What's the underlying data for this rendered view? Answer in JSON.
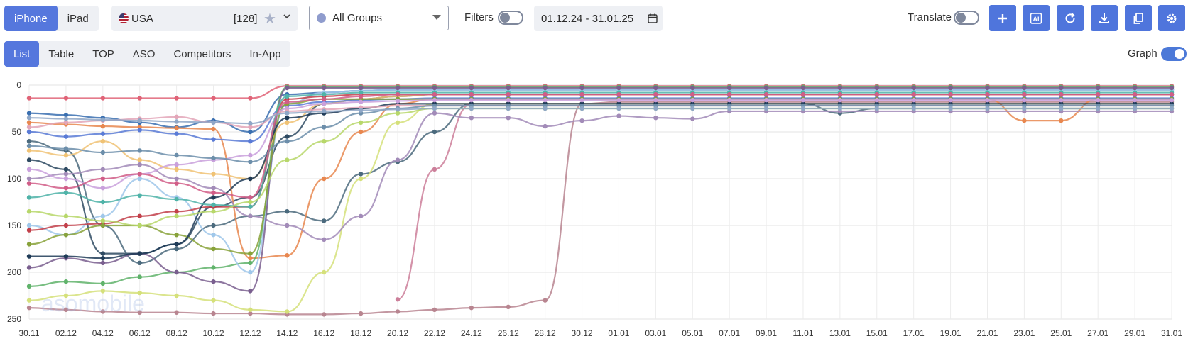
{
  "device_tabs": {
    "iphone": "iPhone",
    "ipad": "iPad"
  },
  "country": {
    "name": "USA",
    "count": "[128]"
  },
  "groups": {
    "selected": "All Groups"
  },
  "filters": {
    "label": "Filters",
    "enabled": false
  },
  "date_range": "01.12.24 - 31.01.25",
  "translate": {
    "label": "Translate",
    "enabled": false
  },
  "toolbar": {
    "ai_label": "AI"
  },
  "view_tabs": [
    "List",
    "Table",
    "TOP",
    "ASO",
    "Competitors",
    "In-App"
  ],
  "graph": {
    "label": "Graph",
    "enabled": true
  },
  "watermark": "asomobile",
  "chart_data": {
    "type": "line",
    "y_reversed": true,
    "ylim": [
      0,
      250
    ],
    "y_ticks": [
      0,
      50,
      100,
      150,
      200,
      250
    ],
    "x_ticks": [
      "30.11",
      "02.12",
      "04.12",
      "06.12",
      "08.12",
      "10.12",
      "12.12",
      "14.12",
      "16.12",
      "18.12",
      "20.12",
      "22.12",
      "24.12",
      "26.12",
      "28.12",
      "30.12",
      "01.01",
      "03.01",
      "05.01",
      "07.01",
      "09.01",
      "11.01",
      "13.01",
      "15.01",
      "17.01",
      "19.01",
      "21.01",
      "23.01",
      "25.01",
      "27.01",
      "29.01",
      "31.01"
    ],
    "grid": true,
    "series_note": "approx. 120 keyword position series; representative subset",
    "series": [
      {
        "color": "#e06377",
        "values": [
          14,
          14,
          14,
          14,
          14,
          14,
          14,
          1,
          1,
          1,
          1,
          1,
          1,
          1,
          1,
          1,
          1,
          1,
          1,
          1,
          1,
          1,
          1,
          1,
          1,
          1,
          1,
          1,
          1,
          1,
          1,
          1
        ]
      },
      {
        "color": "#3a6fb0",
        "values": [
          30,
          32,
          35,
          40,
          45,
          38,
          50,
          10,
          8,
          6,
          5,
          5,
          5,
          5,
          5,
          5,
          5,
          5,
          5,
          5,
          5,
          5,
          5,
          5,
          5,
          5,
          5,
          5,
          5,
          5,
          5,
          5
        ]
      },
      {
        "color": "#2e4a62",
        "values": [
          80,
          90,
          180,
          180,
          170,
          130,
          120,
          55,
          20,
          15,
          12,
          10,
          10,
          10,
          10,
          10,
          10,
          10,
          10,
          10,
          10,
          10,
          10,
          10,
          10,
          10,
          10,
          10,
          10,
          10,
          10,
          10
        ]
      },
      {
        "color": "#4b6a7d",
        "values": [
          60,
          70,
          150,
          190,
          175,
          150,
          140,
          135,
          145,
          95,
          82,
          50,
          20,
          20,
          20,
          20,
          20,
          20,
          20,
          20,
          20,
          20,
          30,
          25,
          25,
          25,
          25,
          25,
          25,
          25,
          25,
          25
        ]
      },
      {
        "color": "#cc7f9a",
        "values": [
          null,
          null,
          null,
          null,
          null,
          null,
          null,
          null,
          null,
          null,
          229,
          90,
          20,
          20,
          20,
          20,
          20,
          20,
          20,
          20,
          20,
          20,
          20,
          20,
          20,
          20,
          20,
          20,
          20,
          20,
          20,
          20
        ]
      },
      {
        "color": "#b88590",
        "values": [
          238,
          240,
          242,
          243,
          243,
          244,
          244,
          245,
          245,
          244,
          242,
          240,
          238,
          237,
          230,
          20,
          18,
          18,
          18,
          18,
          18,
          18,
          18,
          18,
          18,
          18,
          18,
          18,
          18,
          18,
          18,
          18
        ]
      },
      {
        "color": "#d5e07a",
        "values": [
          230,
          225,
          220,
          222,
          225,
          230,
          240,
          242,
          200,
          100,
          40,
          20,
          20,
          20,
          20,
          20,
          20,
          20,
          20,
          20,
          20,
          20,
          20,
          20,
          20,
          20,
          20,
          20,
          20,
          20,
          20,
          20
        ]
      },
      {
        "color": "#e8874f",
        "values": [
          40,
          42,
          44,
          45,
          46,
          47,
          185,
          182,
          100,
          50,
          20,
          15,
          15,
          15,
          15,
          15,
          15,
          15,
          15,
          15,
          15,
          15,
          15,
          15,
          15,
          15,
          15,
          38,
          38,
          15,
          15,
          15
        ]
      },
      {
        "color": "#60b36b",
        "values": [
          215,
          210,
          212,
          205,
          200,
          195,
          190,
          2,
          2,
          2,
          2,
          2,
          2,
          2,
          2,
          2,
          2,
          2,
          2,
          2,
          2,
          2,
          2,
          2,
          2,
          2,
          2,
          2,
          2,
          2,
          2,
          2
        ]
      },
      {
        "color": "#a28bb8",
        "values": [
          100,
          95,
          90,
          85,
          100,
          110,
          140,
          150,
          165,
          140,
          80,
          30,
          35,
          35,
          44,
          38,
          33,
          35,
          36,
          28,
          28,
          28,
          28,
          28,
          28,
          28,
          28,
          28,
          28,
          28,
          28,
          28
        ]
      },
      {
        "color": "#9fc7ea",
        "values": [
          150,
          160,
          140,
          100,
          120,
          160,
          200,
          20,
          8,
          6,
          5,
          5,
          5,
          5,
          5,
          5,
          5,
          5,
          5,
          5,
          5,
          5,
          5,
          5,
          5,
          5,
          5,
          5,
          5,
          5,
          5,
          5
        ]
      },
      {
        "color": "#7a5f8f",
        "values": [
          195,
          185,
          190,
          180,
          200,
          210,
          220,
          3,
          3,
          3,
          3,
          3,
          3,
          3,
          3,
          3,
          3,
          3,
          3,
          3,
          3,
          3,
          3,
          3,
          3,
          3,
          3,
          3,
          3,
          3,
          3,
          3
        ]
      },
      {
        "color": "#f0c274",
        "values": [
          70,
          75,
          60,
          80,
          90,
          95,
          100,
          40,
          20,
          15,
          12,
          10,
          10,
          10,
          10,
          10,
          10,
          10,
          10,
          10,
          10,
          10,
          10,
          10,
          10,
          10,
          10,
          10,
          10,
          10,
          10,
          10
        ]
      },
      {
        "color": "#5a7bd6",
        "values": [
          50,
          55,
          52,
          48,
          52,
          58,
          60,
          22,
          18,
          16,
          15,
          14,
          14,
          14,
          14,
          14,
          14,
          14,
          14,
          14,
          14,
          14,
          14,
          14,
          14,
          14,
          14,
          14,
          14,
          14,
          14,
          14
        ]
      },
      {
        "color": "#c2404a",
        "values": [
          155,
          150,
          148,
          140,
          135,
          130,
          130,
          15,
          12,
          10,
          10,
          10,
          10,
          10,
          10,
          10,
          10,
          10,
          10,
          10,
          10,
          10,
          10,
          10,
          10,
          10,
          10,
          10,
          10,
          10,
          10,
          10
        ]
      },
      {
        "color": "#88a23a",
        "values": [
          170,
          160,
          150,
          150,
          160,
          175,
          180,
          20,
          15,
          15,
          15,
          15,
          15,
          15,
          15,
          15,
          15,
          15,
          15,
          15,
          15,
          15,
          15,
          15,
          15,
          15,
          15,
          15,
          15,
          15,
          15,
          15
        ]
      },
      {
        "color": "#1f3b57",
        "values": [
          183,
          183,
          185,
          180,
          170,
          120,
          100,
          35,
          30,
          25,
          20,
          20,
          20,
          20,
          20,
          20,
          20,
          20,
          20,
          20,
          20,
          20,
          20,
          20,
          20,
          20,
          20,
          20,
          20,
          20,
          20,
          20
        ]
      },
      {
        "color": "#c9a0dc",
        "values": [
          90,
          100,
          110,
          95,
          85,
          80,
          75,
          25,
          20,
          18,
          17,
          16,
          16,
          16,
          16,
          16,
          16,
          16,
          16,
          16,
          16,
          16,
          16,
          16,
          16,
          16,
          16,
          16,
          16,
          16,
          16,
          16
        ]
      },
      {
        "color": "#4fb3a8",
        "values": [
          120,
          115,
          125,
          118,
          122,
          128,
          130,
          12,
          10,
          8,
          8,
          8,
          8,
          8,
          8,
          8,
          8,
          8,
          8,
          8,
          8,
          8,
          8,
          8,
          8,
          8,
          8,
          8,
          8,
          8,
          8,
          8
        ]
      },
      {
        "color": "#e3a6b8",
        "values": [
          45,
          40,
          38,
          36,
          34,
          40,
          45,
          28,
          26,
          24,
          22,
          22,
          22,
          22,
          22,
          22,
          22,
          22,
          22,
          22,
          22,
          22,
          22,
          22,
          22,
          22,
          22,
          22,
          22,
          22,
          22,
          22
        ]
      },
      {
        "color": "#6c8eaa",
        "values": [
          65,
          68,
          72,
          70,
          75,
          78,
          82,
          60,
          45,
          30,
          25,
          22,
          22,
          22,
          22,
          22,
          22,
          22,
          22,
          22,
          22,
          22,
          22,
          22,
          22,
          22,
          22,
          22,
          22,
          22,
          22,
          22
        ]
      },
      {
        "color": "#b7d76a",
        "values": [
          135,
          140,
          145,
          150,
          140,
          135,
          125,
          80,
          60,
          40,
          30,
          25,
          25,
          25,
          25,
          25,
          25,
          25,
          25,
          25,
          25,
          25,
          25,
          25,
          25,
          25,
          25,
          25,
          25,
          25,
          25,
          25
        ]
      },
      {
        "color": "#d15d87",
        "values": [
          105,
          110,
          100,
          95,
          105,
          115,
          120,
          18,
          15,
          12,
          10,
          10,
          10,
          10,
          10,
          10,
          10,
          10,
          10,
          10,
          10,
          10,
          10,
          10,
          10,
          10,
          10,
          10,
          10,
          10,
          10,
          10
        ]
      },
      {
        "color": "#8fa7c7",
        "values": [
          35,
          36,
          37,
          38,
          39,
          40,
          41,
          30,
          28,
          27,
          26,
          25,
          25,
          25,
          25,
          25,
          25,
          25,
          25,
          25,
          25,
          25,
          25,
          25,
          25,
          25,
          25,
          25,
          25,
          25,
          25,
          25
        ]
      }
    ]
  }
}
